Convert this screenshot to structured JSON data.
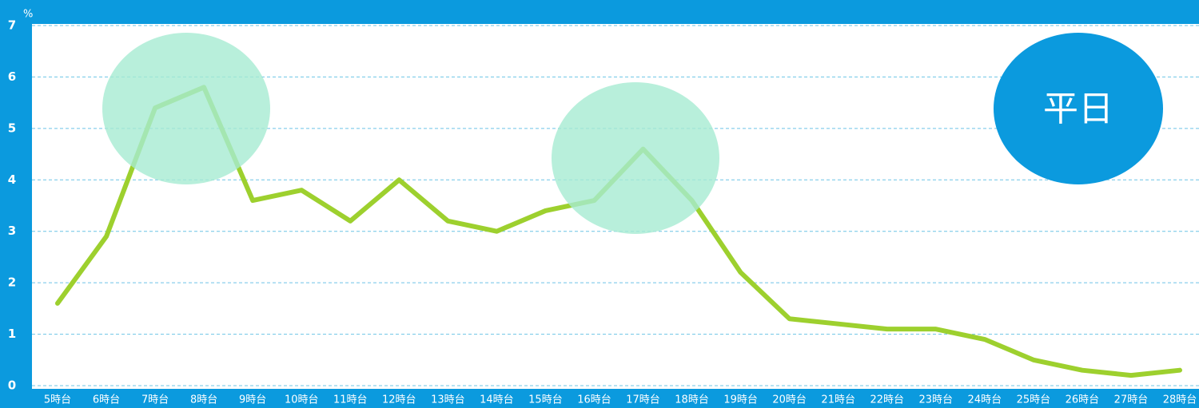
{
  "chart_data": {
    "type": "line",
    "unit": "%",
    "badge": "平日",
    "categories": [
      "5時台",
      "6時台",
      "7時台",
      "8時台",
      "9時台",
      "10時台",
      "11時台",
      "12時台",
      "13時台",
      "14時台",
      "15時台",
      "16時台",
      "17時台",
      "18時台",
      "19時台",
      "20時台",
      "21時台",
      "22時台",
      "23時台",
      "24時台",
      "25時台",
      "26時台",
      "27時台",
      "28時台"
    ],
    "series": [
      {
        "color": "#9dd02e",
        "values": [
          1.6,
          2.9,
          5.4,
          5.8,
          3.6,
          3.8,
          3.2,
          4.0,
          3.2,
          3.0,
          3.4,
          3.6,
          4.6,
          3.6,
          2.2,
          1.3,
          1.2,
          1.1,
          1.1,
          0.9,
          0.5,
          0.3,
          0.2,
          0.3
        ]
      }
    ],
    "ylim": [
      0,
      7
    ],
    "yticks": [
      0,
      1,
      2,
      3,
      4,
      5,
      6,
      7
    ],
    "grid": true
  }
}
